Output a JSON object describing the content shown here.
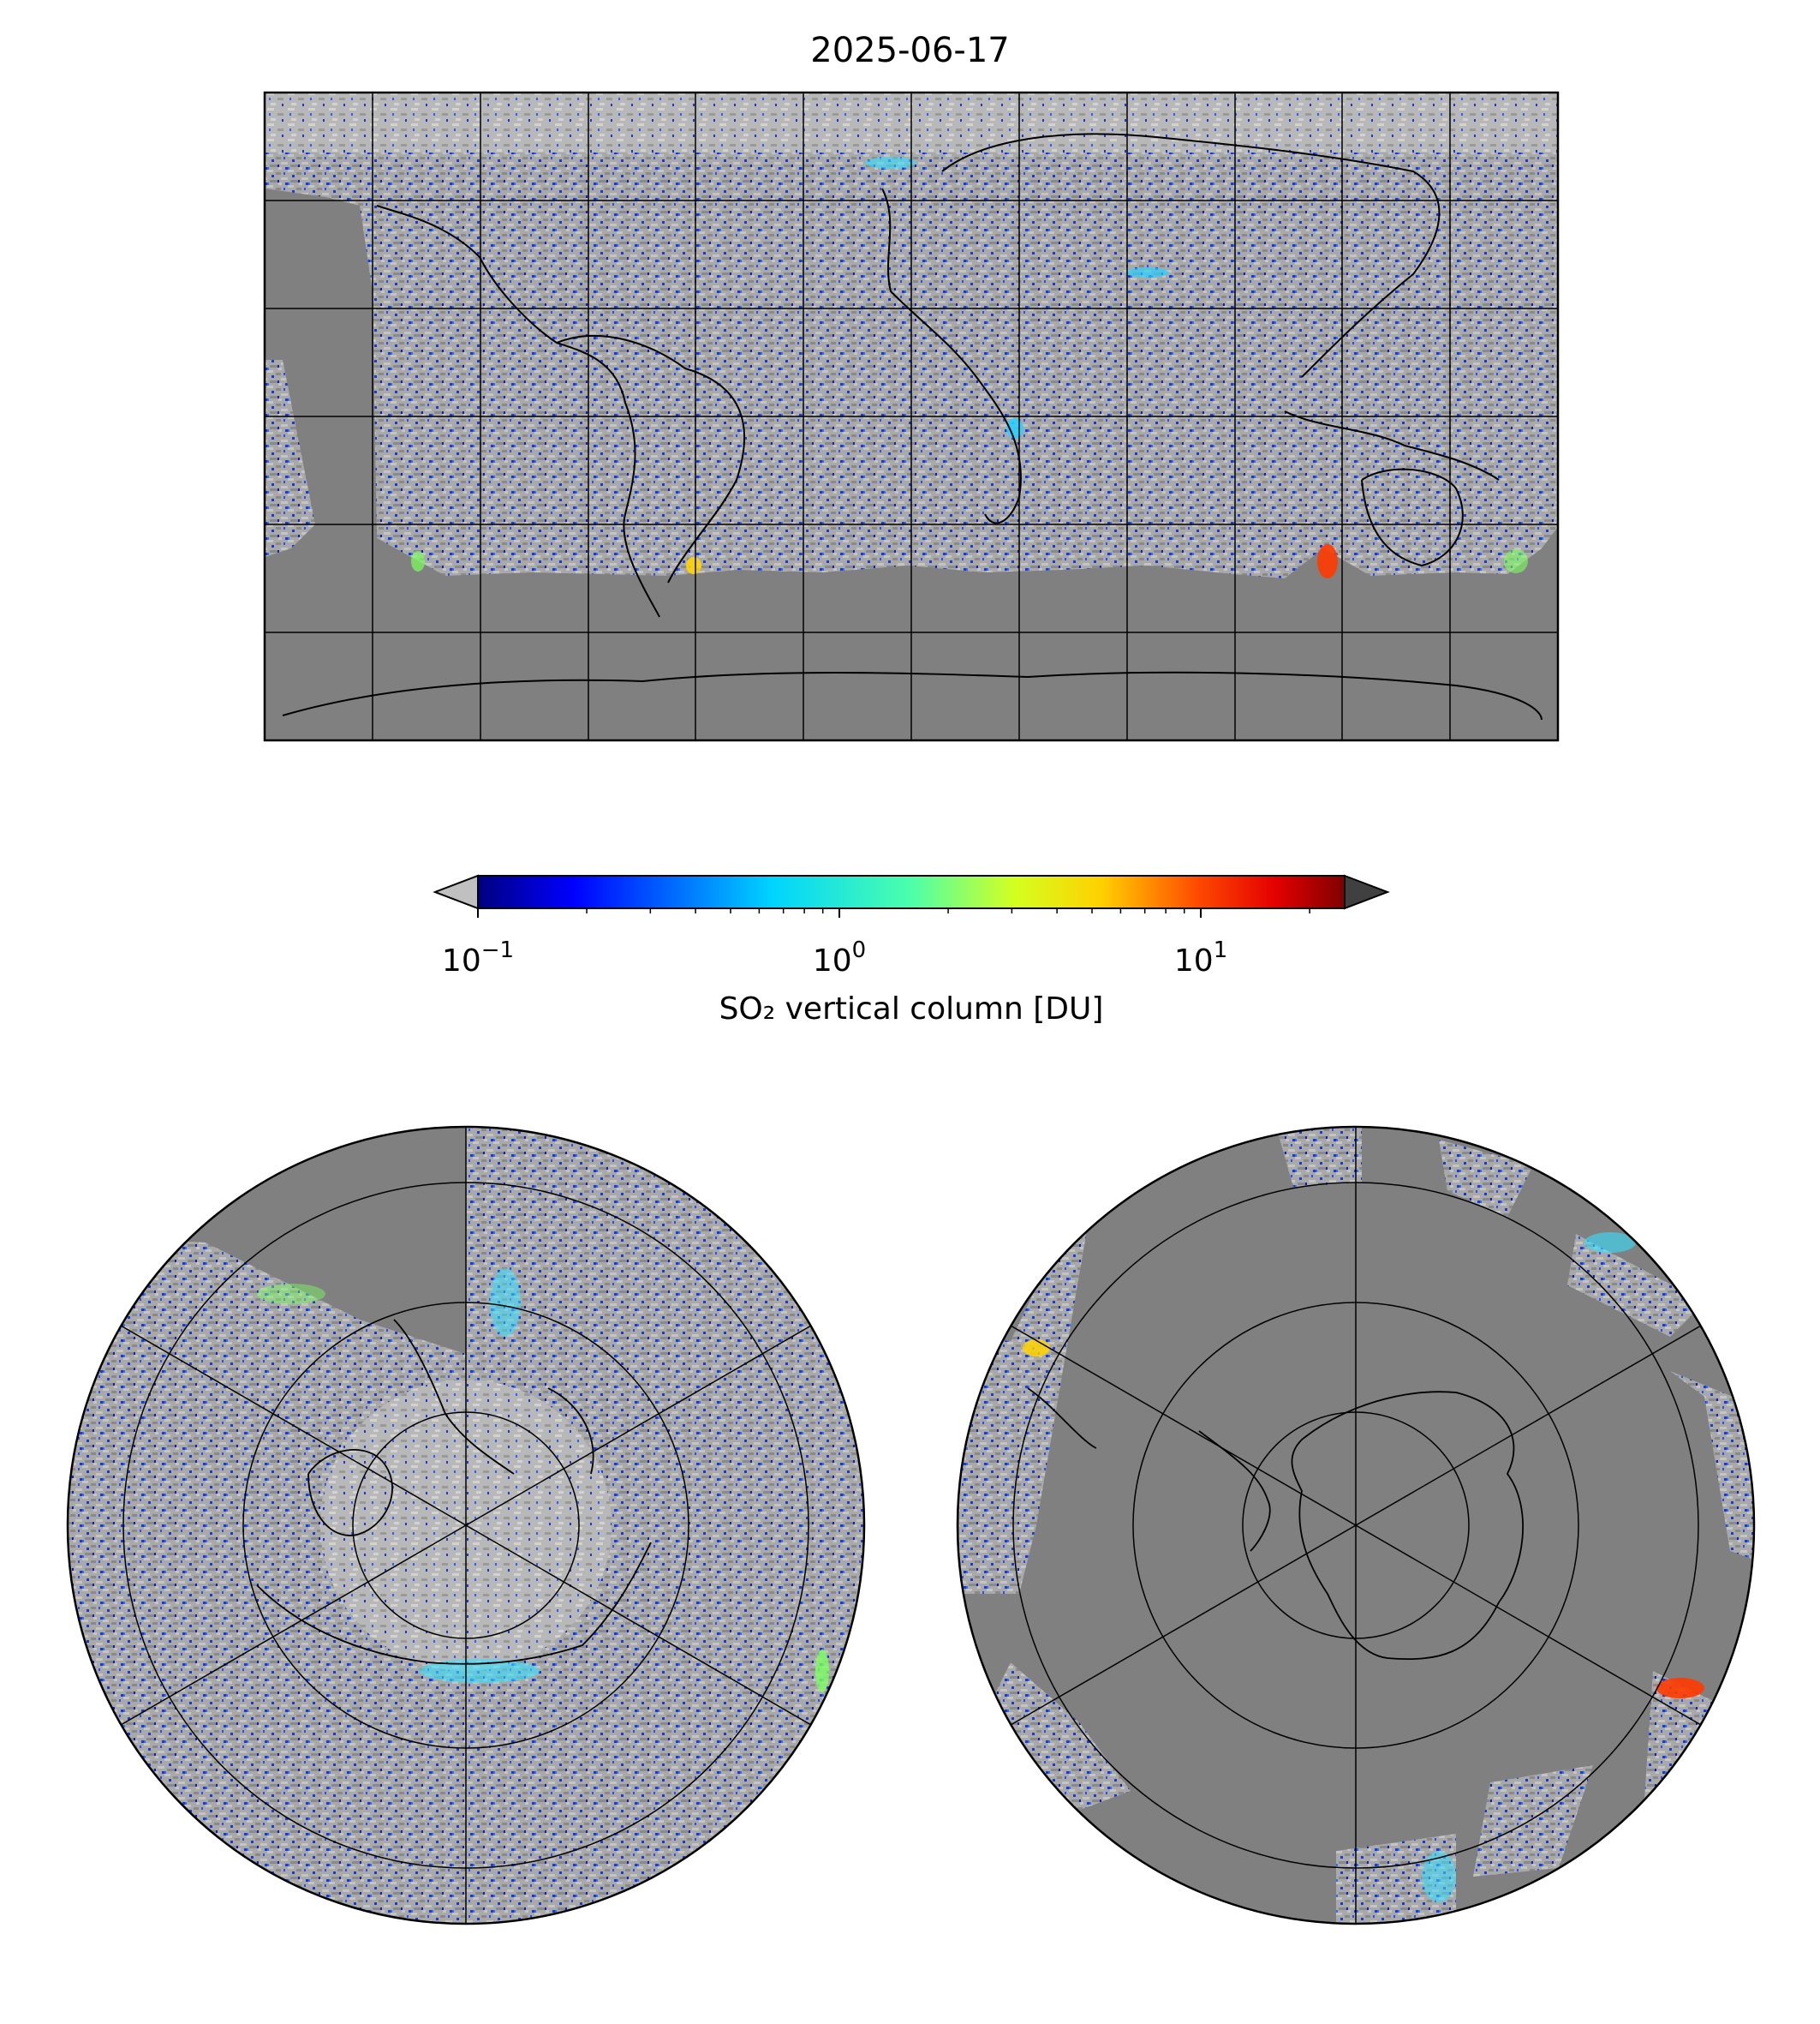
{
  "title": "2025-06-17",
  "colorbar": {
    "label": "SO₂ vertical column [DU]",
    "scale": "log",
    "range": [
      0.1,
      25
    ],
    "extend": "both",
    "under_color": "#c0c0c0",
    "over_color": "#404040",
    "colormap": "jet",
    "ticks": [
      {
        "base": "10",
        "exp": "−1",
        "value": 0.1
      },
      {
        "base": "10",
        "exp": "0",
        "value": 1
      },
      {
        "base": "10",
        "exp": "1",
        "value": 10
      }
    ]
  },
  "maps": [
    {
      "name": "global",
      "projection": "equirectangular",
      "gridlines": "30°"
    },
    {
      "name": "north-polar",
      "projection": "polar stereographic",
      "hemisphere": "north"
    },
    {
      "name": "south-polar",
      "projection": "polar stereographic",
      "hemisphere": "south"
    }
  ],
  "colors": {
    "no_data": "#808080",
    "low_values": "#c0c0c0",
    "coast": "#000000"
  }
}
